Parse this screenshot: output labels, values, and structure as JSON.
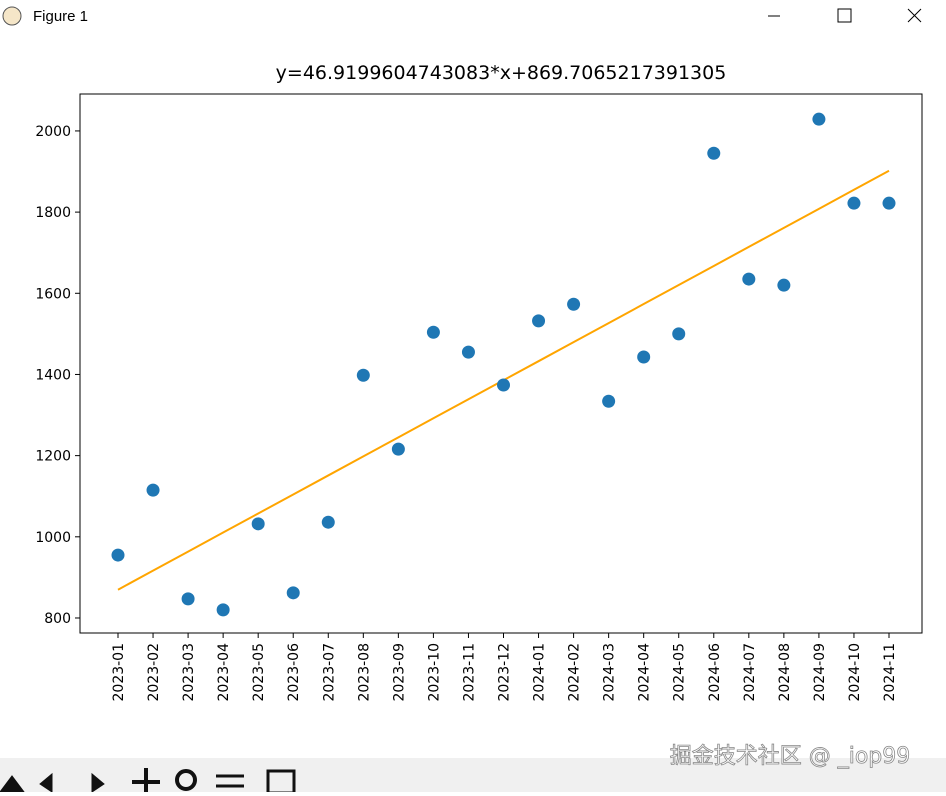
{
  "window": {
    "title": "Figure 1"
  },
  "watermark": "掘金技术社区 @ _iop99",
  "chart_data": {
    "type": "scatter",
    "title": "y=46.9199604743083*x+869.7065217391305",
    "categories": [
      "2023-01",
      "2023-02",
      "2023-03",
      "2023-04",
      "2023-05",
      "2023-06",
      "2023-07",
      "2023-08",
      "2023-09",
      "2023-10",
      "2023-11",
      "2023-12",
      "2024-01",
      "2024-02",
      "2024-03",
      "2024-04",
      "2024-05",
      "2024-06",
      "2024-07",
      "2024-08",
      "2024-09",
      "2024-10",
      "2024-11"
    ],
    "series": [
      {
        "type": "scatter",
        "color": "#1f77b4",
        "values": [
          955,
          1115,
          847,
          820,
          1032,
          862,
          1036,
          1398,
          1216,
          1504,
          1455,
          1374,
          1532,
          1573,
          1334,
          1443,
          1500,
          1945,
          1635,
          1620,
          2029,
          1822,
          1822
        ]
      },
      {
        "type": "line",
        "color": "#ffa500",
        "values": [
          869.7,
          916.6,
          963.6,
          1010.5,
          1057.4,
          1104.3,
          1151.2,
          1198.1,
          1245.1,
          1292.0,
          1338.9,
          1385.8,
          1432.7,
          1479.7,
          1526.6,
          1573.5,
          1620.4,
          1667.3,
          1714.3,
          1761.2,
          1808.1,
          1855.0,
          1901.9
        ]
      }
    ],
    "ylim": [
      763,
      2091
    ],
    "yticks": [
      800,
      1000,
      1200,
      1400,
      1600,
      1800,
      2000
    ],
    "grid": false
  }
}
